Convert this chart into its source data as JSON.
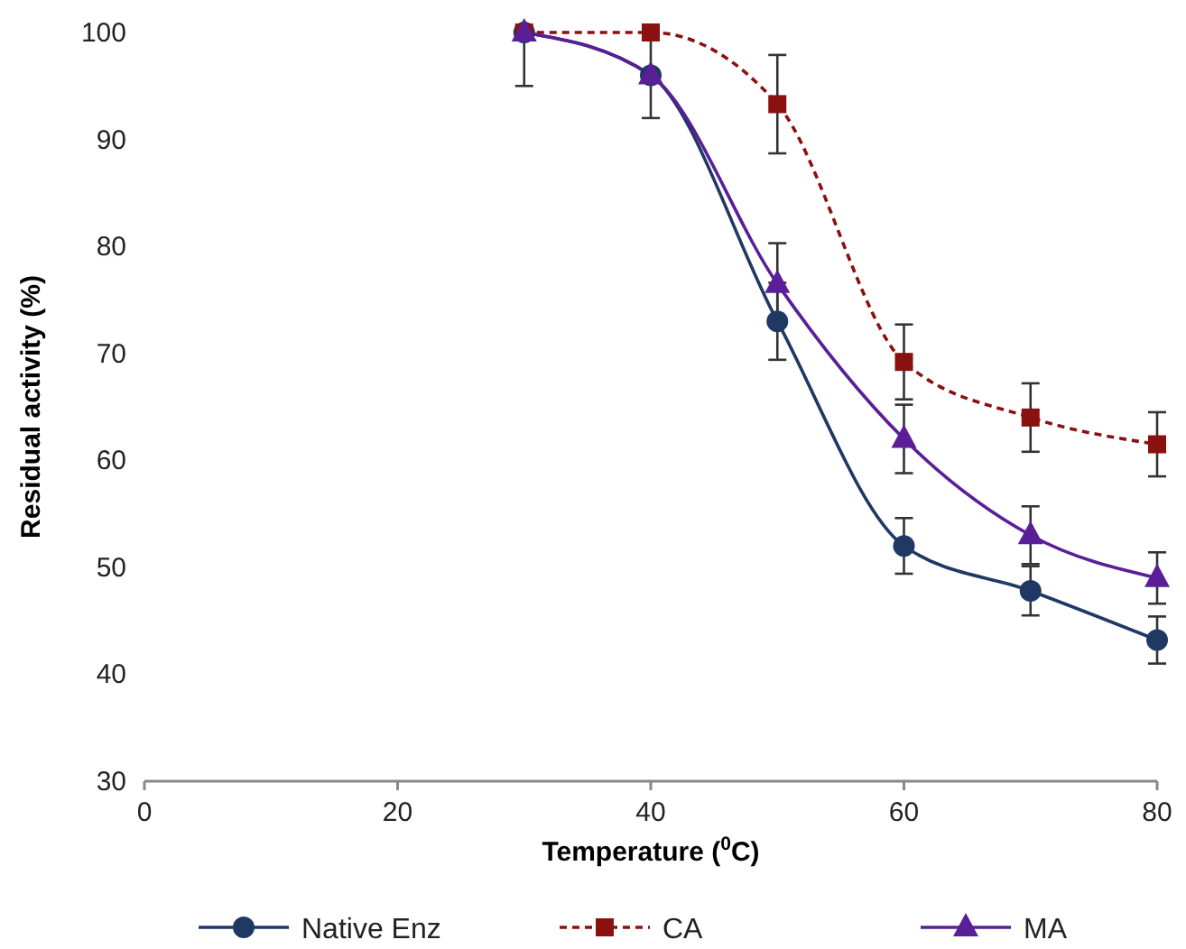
{
  "chart_data": {
    "type": "line",
    "xlabel": "Temperature ($^{0}$C)",
    "ylabel": "Residual activity (%)",
    "x": [
      30,
      40,
      50,
      60,
      70,
      80
    ],
    "xlim": [
      0,
      80
    ],
    "xticks": [
      0,
      20,
      40,
      60,
      80
    ],
    "ylim": [
      30,
      100
    ],
    "yticks": [
      30,
      40,
      50,
      60,
      70,
      80,
      90,
      100
    ],
    "grid": false,
    "legend": "bottom",
    "series": [
      {
        "name": "Native Enz",
        "color": "#203864",
        "marker": "circle",
        "line_style": "solid",
        "values": [
          100,
          96,
          73,
          52,
          47.8,
          43.2
        ],
        "errors": [
          null,
          null,
          3.6,
          2.6,
          2.3,
          2.2
        ]
      },
      {
        "name": "CA",
        "color": "#8b1010",
        "marker": "square",
        "line_style": "dashed",
        "values": [
          100,
          100,
          93.3,
          69.2,
          64,
          61.5
        ],
        "errors": [
          null,
          null,
          4.6,
          3.5,
          3.2,
          3
        ]
      },
      {
        "name": "MA",
        "color": "#5a1e96",
        "marker": "triangle",
        "line_style": "solid",
        "values": [
          100,
          96,
          76.5,
          62,
          53,
          49
        ],
        "errors": [
          [
            95,
            100
          ],
          4,
          3.8,
          3.2,
          2.7,
          2.4
        ]
      }
    ]
  }
}
